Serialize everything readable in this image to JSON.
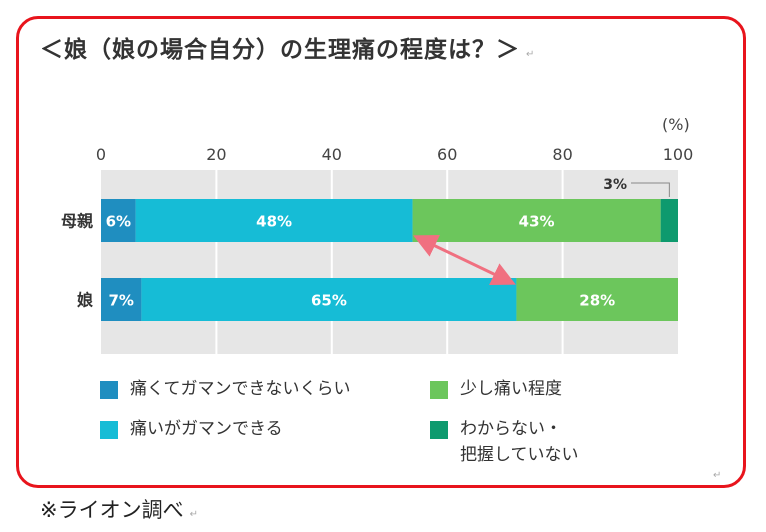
{
  "title": "＜娘（娘の場合自分）の生理痛の程度は？＞",
  "return_mark": "↵",
  "footnote": "※ライオン調べ",
  "chart_data": {
    "type": "bar",
    "orientation": "horizontal",
    "stacked": true,
    "unit_label": "(%)",
    "xlim": [
      0,
      100
    ],
    "x_ticks": [
      "0",
      "20",
      "40",
      "60",
      "80",
      "100"
    ],
    "categories": [
      "母親",
      "娘"
    ],
    "series": [
      {
        "name": "痛くてガマンできないくらい",
        "color": "#1f8ec0",
        "values": [
          6,
          7
        ],
        "labels": [
          "6%",
          "7%"
        ]
      },
      {
        "name": "痛いがガマンできる",
        "color": "#16bcd6",
        "values": [
          48,
          65
        ],
        "labels": [
          "48%",
          "65%"
        ]
      },
      {
        "name": "少し痛い程度",
        "color": "#6cc65c",
        "values": [
          43,
          28
        ],
        "labels": [
          "43%",
          "28%"
        ]
      },
      {
        "name": "わからない・把握していない",
        "color": "#0e9a6e",
        "values": [
          3,
          0
        ],
        "labels": [
          "3%",
          ""
        ]
      }
    ],
    "grid": true,
    "legend_position": "bottom",
    "arrow_color": "#f07080"
  },
  "legend": [
    {
      "label": "痛くてガマンできないくらい",
      "color": "#1f8ec0"
    },
    {
      "label": "少し痛い程度",
      "color": "#6cc65c"
    },
    {
      "label": "痛いがガマンできる",
      "color": "#16bcd6"
    },
    {
      "label": "わからない・",
      "label2": "把握していない",
      "color": "#0e9a6e"
    }
  ]
}
